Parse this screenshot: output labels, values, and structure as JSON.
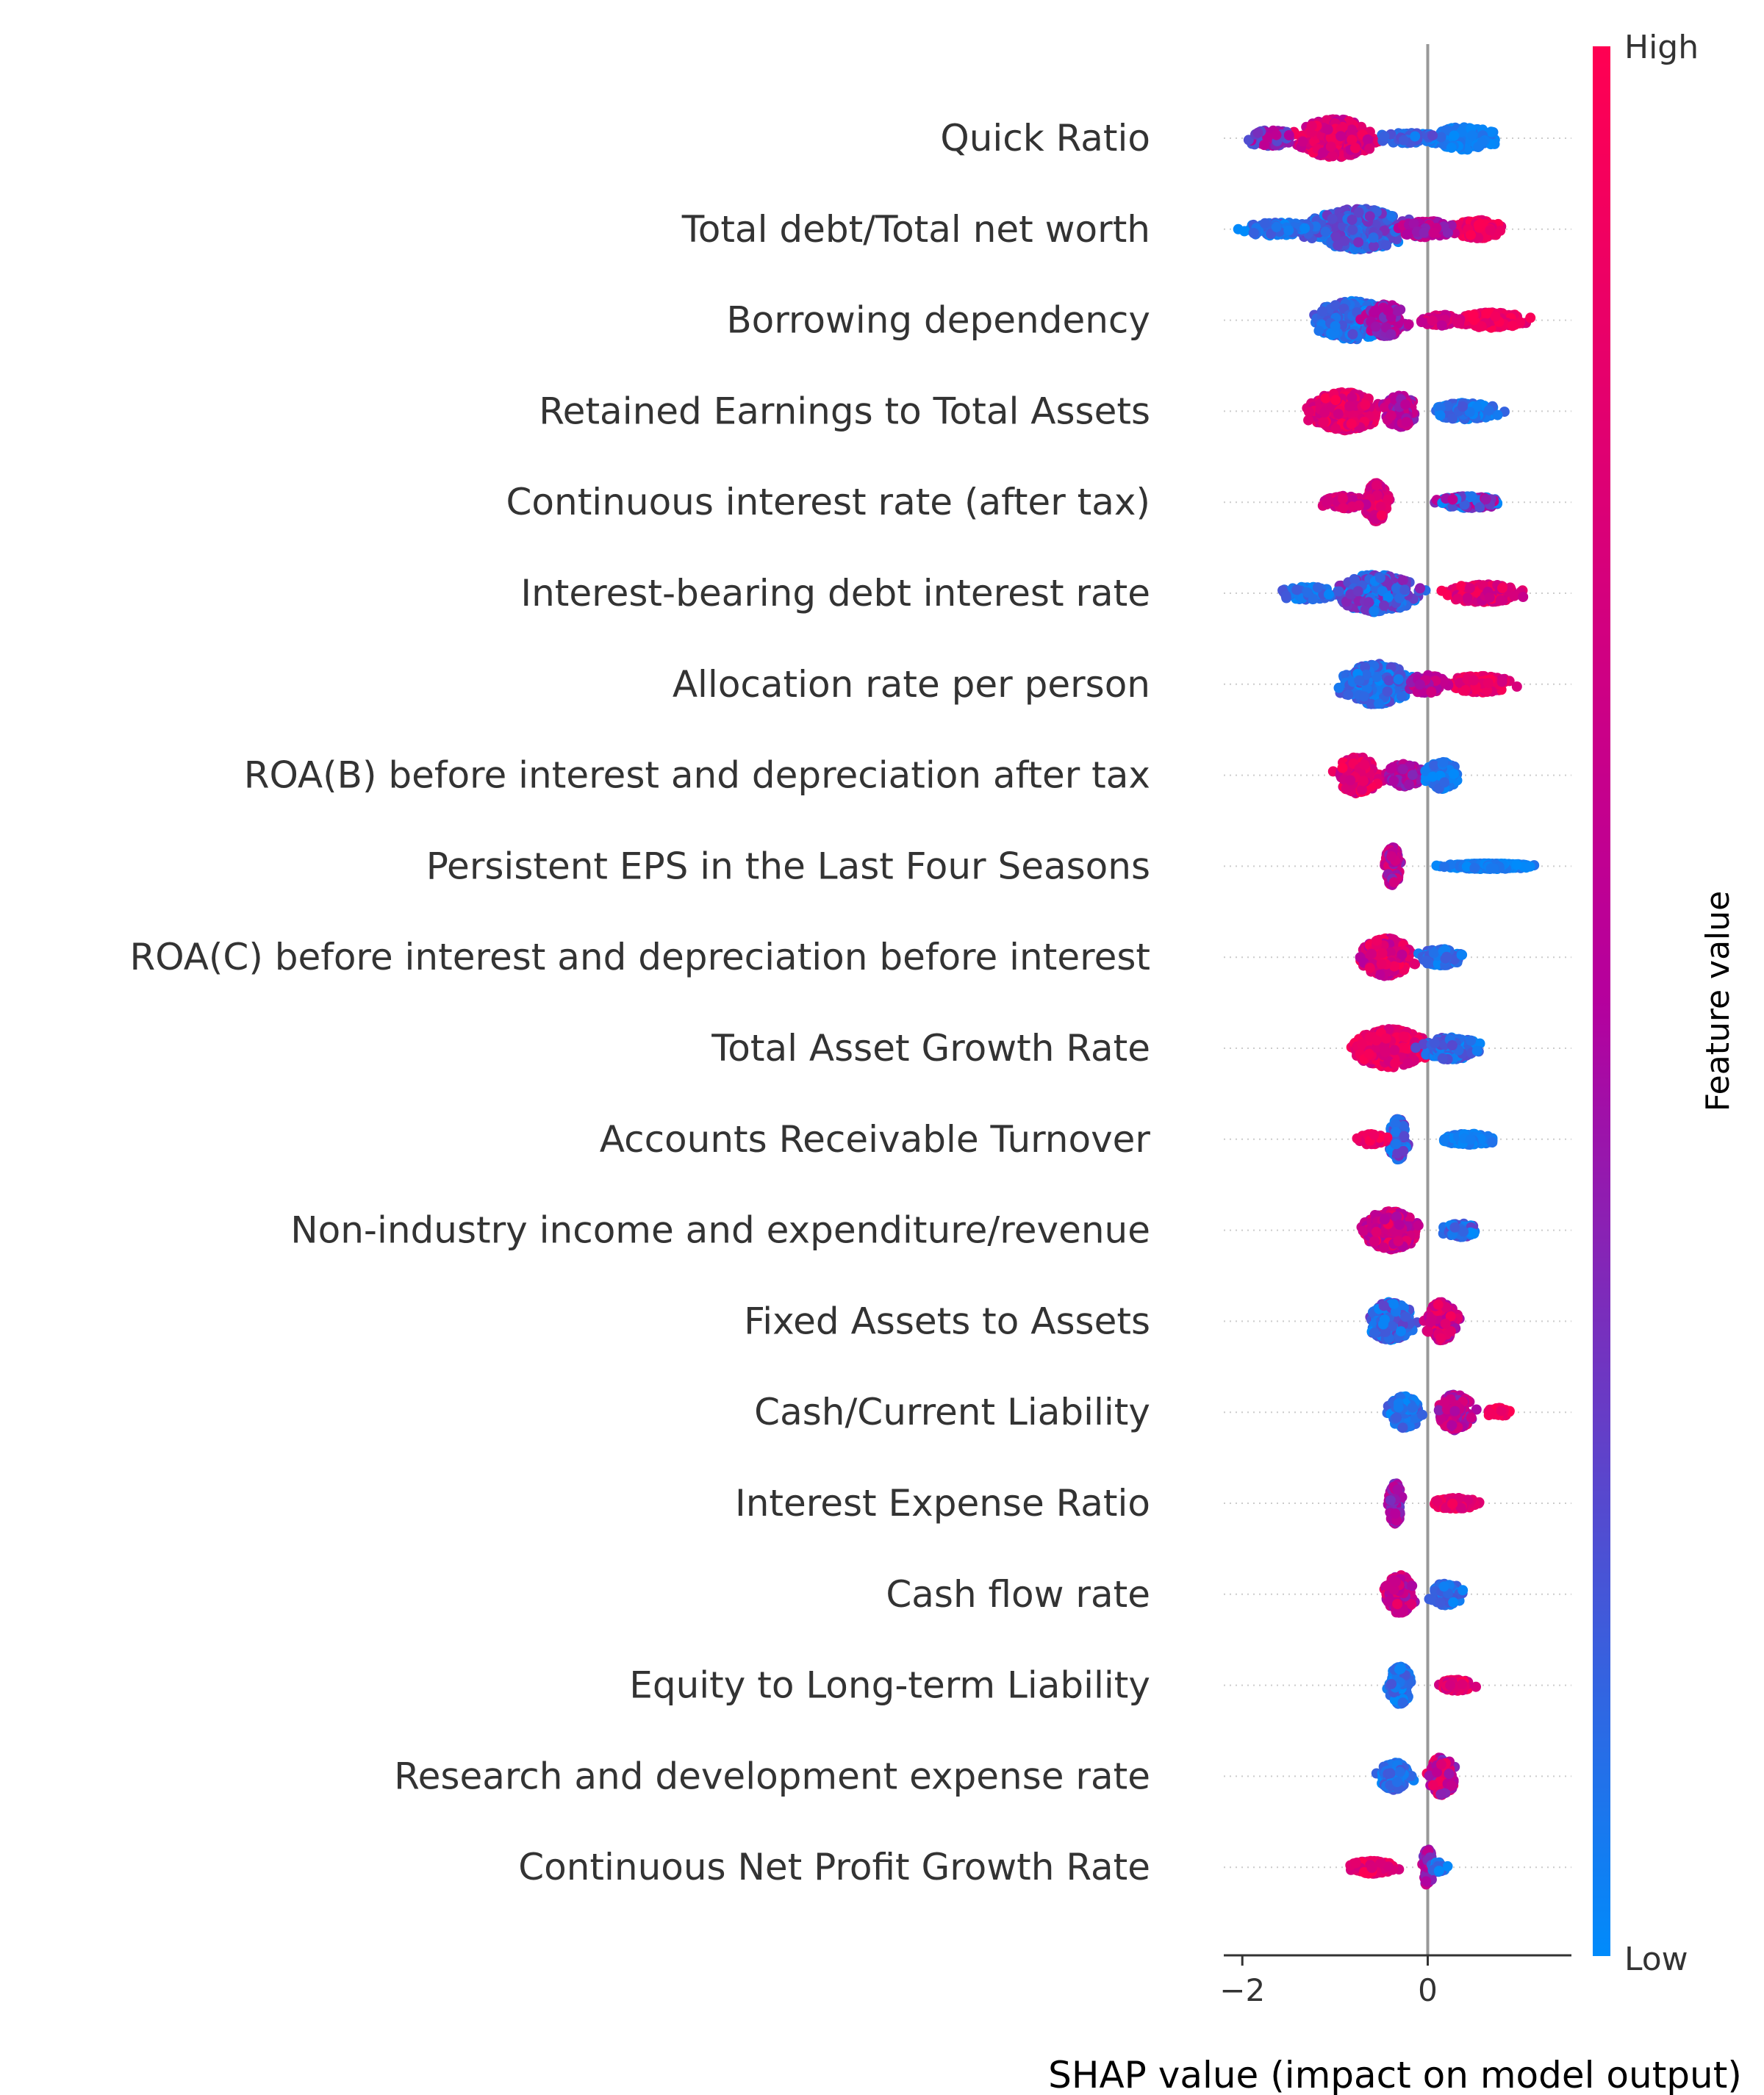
{
  "chart_data": {
    "type": "scatter",
    "subtype": "shap-beeswarm",
    "xlabel": "SHAP value (impact on model output)",
    "x_ticks": [
      -2,
      0
    ],
    "xlim": [
      -2.2,
      1.55
    ],
    "colorbar": {
      "label": "Feature value",
      "high_label": "High",
      "low_label": "Low",
      "colors": [
        "#008bfb",
        "#ff0052"
      ]
    },
    "features": [
      {
        "name": "Quick Ratio",
        "clusters": [
          {
            "center": -1.0,
            "spread": 0.35,
            "height": 0.42,
            "n": 420,
            "low": 0.55,
            "high": 0.95
          },
          {
            "center": -1.7,
            "spread": 0.25,
            "height": 0.18,
            "n": 90,
            "low": 0.2,
            "high": 0.6
          },
          {
            "center": 0.4,
            "spread": 0.28,
            "height": 0.25,
            "n": 200,
            "low": 0.0,
            "high": 0.1
          },
          {
            "center": -0.2,
            "spread": 0.3,
            "height": 0.12,
            "n": 80,
            "low": 0.0,
            "high": 0.25
          }
        ]
      },
      {
        "name": "Total debt/Total net worth",
        "clusters": [
          {
            "center": -0.75,
            "spread": 0.45,
            "height": 0.45,
            "n": 480,
            "low": 0.0,
            "high": 0.35
          },
          {
            "center": -1.6,
            "spread": 0.35,
            "height": 0.15,
            "n": 100,
            "low": 0.0,
            "high": 0.2
          },
          {
            "center": 0.55,
            "spread": 0.22,
            "height": 0.2,
            "n": 200,
            "low": 0.75,
            "high": 1.0
          },
          {
            "center": 0.0,
            "spread": 0.25,
            "height": 0.18,
            "n": 110,
            "low": 0.35,
            "high": 0.7
          }
        ]
      },
      {
        "name": "Borrowing dependency",
        "clusters": [
          {
            "center": -0.8,
            "spread": 0.35,
            "height": 0.42,
            "n": 360,
            "low": 0.0,
            "high": 0.25
          },
          {
            "center": -0.45,
            "spread": 0.18,
            "height": 0.35,
            "n": 160,
            "low": 0.3,
            "high": 0.6
          },
          {
            "center": 0.7,
            "spread": 0.3,
            "height": 0.17,
            "n": 200,
            "low": 0.75,
            "high": 1.0
          },
          {
            "center": 0.15,
            "spread": 0.2,
            "height": 0.12,
            "n": 80,
            "low": 0.55,
            "high": 0.85
          }
        ]
      },
      {
        "name": "Retained Earnings to Total Assets",
        "clusters": [
          {
            "center": -0.9,
            "spread": 0.32,
            "height": 0.42,
            "n": 460,
            "low": 0.65,
            "high": 1.0
          },
          {
            "center": -0.3,
            "spread": 0.15,
            "height": 0.35,
            "n": 160,
            "low": 0.35,
            "high": 0.7
          },
          {
            "center": 0.4,
            "spread": 0.3,
            "height": 0.18,
            "n": 180,
            "low": 0.0,
            "high": 0.2
          }
        ]
      },
      {
        "name": "Continuous interest rate (after tax)",
        "clusters": [
          {
            "center": -0.55,
            "spread": 0.1,
            "height": 0.42,
            "n": 220,
            "low": 0.6,
            "high": 0.95
          },
          {
            "center": -0.9,
            "spread": 0.22,
            "height": 0.14,
            "n": 100,
            "low": 0.55,
            "high": 0.9
          },
          {
            "center": 0.45,
            "spread": 0.3,
            "height": 0.13,
            "n": 200,
            "low": 0.0,
            "high": 0.6
          }
        ]
      },
      {
        "name": "Interest-bearing debt interest rate",
        "clusters": [
          {
            "center": -0.55,
            "spread": 0.35,
            "height": 0.42,
            "n": 380,
            "low": 0.0,
            "high": 0.4
          },
          {
            "center": -1.3,
            "spread": 0.3,
            "height": 0.14,
            "n": 80,
            "low": 0.0,
            "high": 0.2
          },
          {
            "center": 0.6,
            "spread": 0.35,
            "height": 0.2,
            "n": 240,
            "low": 0.6,
            "high": 1.0
          }
        ]
      },
      {
        "name": "Allocation rate per person",
        "clusters": [
          {
            "center": -0.55,
            "spread": 0.3,
            "height": 0.45,
            "n": 420,
            "low": 0.0,
            "high": 0.25
          },
          {
            "center": 0.55,
            "spread": 0.3,
            "height": 0.18,
            "n": 220,
            "low": 0.65,
            "high": 1.0
          },
          {
            "center": 0.0,
            "spread": 0.2,
            "height": 0.2,
            "n": 100,
            "low": 0.4,
            "high": 0.75
          }
        ]
      },
      {
        "name": "ROA(B) before interest and depreciation after tax",
        "clusters": [
          {
            "center": -0.75,
            "spread": 0.2,
            "height": 0.4,
            "n": 260,
            "low": 0.6,
            "high": 1.0
          },
          {
            "center": -0.25,
            "spread": 0.15,
            "height": 0.25,
            "n": 160,
            "low": 0.35,
            "high": 0.65
          },
          {
            "center": 0.15,
            "spread": 0.15,
            "height": 0.3,
            "n": 120,
            "low": 0.0,
            "high": 0.15
          }
        ]
      },
      {
        "name": "Persistent EPS in the Last Four Seasons",
        "clusters": [
          {
            "center": -0.38,
            "spread": 0.07,
            "height": 0.42,
            "n": 220,
            "low": 0.35,
            "high": 0.85
          },
          {
            "center": 0.65,
            "spread": 0.4,
            "height": 0.06,
            "n": 260,
            "low": 0.0,
            "high": 0.1
          }
        ]
      },
      {
        "name": "ROA(C) before interest and depreciation before interest",
        "clusters": [
          {
            "center": -0.45,
            "spread": 0.22,
            "height": 0.42,
            "n": 340,
            "low": 0.5,
            "high": 1.0
          },
          {
            "center": 0.15,
            "spread": 0.2,
            "height": 0.18,
            "n": 140,
            "low": 0.0,
            "high": 0.2
          }
        ]
      },
      {
        "name": "Total Asset Growth Rate",
        "clusters": [
          {
            "center": -0.4,
            "spread": 0.32,
            "height": 0.42,
            "n": 420,
            "low": 0.7,
            "high": 1.0
          },
          {
            "center": 0.25,
            "spread": 0.25,
            "height": 0.25,
            "n": 160,
            "low": 0.0,
            "high": 0.25
          }
        ]
      },
      {
        "name": "Accounts Receivable Turnover",
        "clusters": [
          {
            "center": -0.32,
            "spread": 0.08,
            "height": 0.45,
            "n": 220,
            "low": 0.0,
            "high": 0.35
          },
          {
            "center": -0.6,
            "spread": 0.12,
            "height": 0.12,
            "n": 60,
            "low": 0.75,
            "high": 1.0
          },
          {
            "center": 0.45,
            "spread": 0.25,
            "height": 0.12,
            "n": 200,
            "low": 0.0,
            "high": 0.1
          }
        ]
      },
      {
        "name": "Non-industry income and expenditure/revenue",
        "clusters": [
          {
            "center": -0.4,
            "spread": 0.25,
            "height": 0.42,
            "n": 360,
            "low": 0.45,
            "high": 0.95
          },
          {
            "center": 0.35,
            "spread": 0.15,
            "height": 0.15,
            "n": 120,
            "low": 0.0,
            "high": 0.3
          }
        ]
      },
      {
        "name": "Fixed Assets to Assets",
        "clusters": [
          {
            "center": -0.4,
            "spread": 0.2,
            "height": 0.42,
            "n": 300,
            "low": 0.0,
            "high": 0.3
          },
          {
            "center": 0.15,
            "spread": 0.14,
            "height": 0.42,
            "n": 260,
            "low": 0.45,
            "high": 1.0
          }
        ]
      },
      {
        "name": "Cash/Current Liability",
        "clusters": [
          {
            "center": -0.25,
            "spread": 0.15,
            "height": 0.35,
            "n": 220,
            "low": 0.0,
            "high": 0.2
          },
          {
            "center": 0.3,
            "spread": 0.15,
            "height": 0.4,
            "n": 220,
            "low": 0.35,
            "high": 0.8
          },
          {
            "center": 0.75,
            "spread": 0.1,
            "height": 0.1,
            "n": 40,
            "low": 0.8,
            "high": 1.0
          }
        ]
      },
      {
        "name": "Interest Expense Ratio",
        "clusters": [
          {
            "center": -0.35,
            "spread": 0.06,
            "height": 0.45,
            "n": 200,
            "low": 0.25,
            "high": 0.6
          },
          {
            "center": 0.3,
            "spread": 0.22,
            "height": 0.12,
            "n": 140,
            "low": 0.7,
            "high": 1.0
          }
        ]
      },
      {
        "name": "Cash flow rate",
        "clusters": [
          {
            "center": -0.3,
            "spread": 0.13,
            "height": 0.42,
            "n": 260,
            "low": 0.4,
            "high": 0.9
          },
          {
            "center": 0.2,
            "spread": 0.14,
            "height": 0.25,
            "n": 120,
            "low": 0.0,
            "high": 0.2
          }
        ]
      },
      {
        "name": "Equity to Long-term Liability",
        "clusters": [
          {
            "center": -0.3,
            "spread": 0.1,
            "height": 0.42,
            "n": 220,
            "low": 0.0,
            "high": 0.2
          },
          {
            "center": 0.3,
            "spread": 0.16,
            "height": 0.12,
            "n": 140,
            "low": 0.65,
            "high": 1.0
          }
        ]
      },
      {
        "name": "Research and development expense rate",
        "clusters": [
          {
            "center": -0.35,
            "spread": 0.15,
            "height": 0.3,
            "n": 220,
            "low": 0.0,
            "high": 0.2
          },
          {
            "center": 0.15,
            "spread": 0.12,
            "height": 0.42,
            "n": 200,
            "low": 0.3,
            "high": 0.95
          }
        ]
      },
      {
        "name": "Continuous Net Profit Growth Rate",
        "clusters": [
          {
            "center": -0.6,
            "spread": 0.2,
            "height": 0.14,
            "n": 200,
            "low": 0.7,
            "high": 1.0
          },
          {
            "center": 0.0,
            "spread": 0.05,
            "height": 0.4,
            "n": 120,
            "low": 0.3,
            "high": 0.7
          },
          {
            "center": 0.12,
            "spread": 0.08,
            "height": 0.12,
            "n": 40,
            "low": 0.0,
            "high": 0.2
          }
        ]
      }
    ]
  }
}
